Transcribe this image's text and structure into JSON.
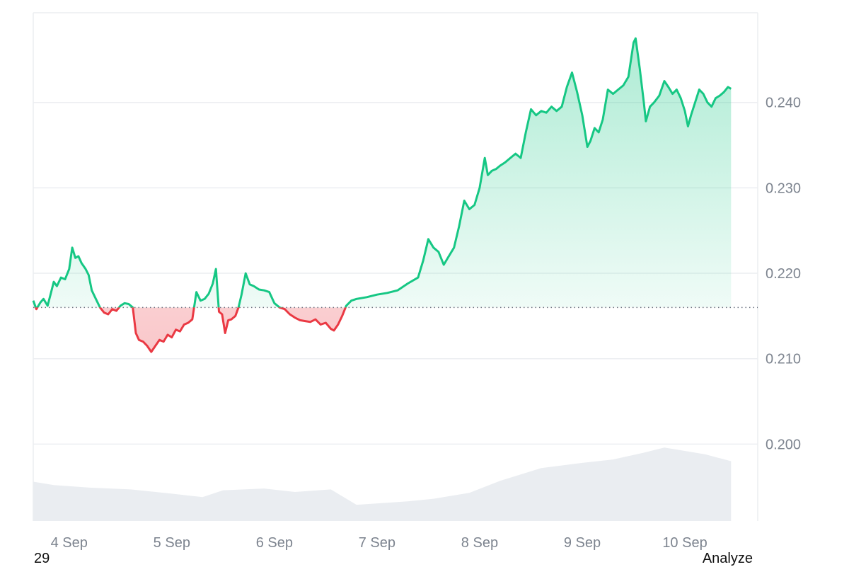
{
  "chart_data": {
    "type": "line",
    "baseline": 0.216,
    "ylim": [
      0.191,
      0.2505
    ],
    "xlim": [
      3.65,
      10.71
    ],
    "y_ticks": [
      {
        "value": 0.24,
        "label": "0.240"
      },
      {
        "value": 0.23,
        "label": "0.230"
      },
      {
        "value": 0.22,
        "label": "0.220"
      },
      {
        "value": 0.21,
        "label": "0.210"
      },
      {
        "value": 0.2,
        "label": "0.200"
      }
    ],
    "x_ticks": [
      {
        "value": 4,
        "label": "4 Sep"
      },
      {
        "value": 5,
        "label": "5 Sep"
      },
      {
        "value": 6,
        "label": "6 Sep"
      },
      {
        "value": 7,
        "label": "7 Sep"
      },
      {
        "value": 8,
        "label": "8 Sep"
      },
      {
        "value": 9,
        "label": "9 Sep"
      },
      {
        "value": 10,
        "label": "10 Sep"
      }
    ],
    "series": [
      {
        "values": [
          [
            3.65,
            0.2168
          ],
          [
            3.68,
            0.2158
          ],
          [
            3.72,
            0.2166
          ],
          [
            3.75,
            0.217
          ],
          [
            3.79,
            0.2162
          ],
          [
            3.82,
            0.2176
          ],
          [
            3.85,
            0.219
          ],
          [
            3.88,
            0.2185
          ],
          [
            3.92,
            0.2195
          ],
          [
            3.96,
            0.2193
          ],
          [
            4.0,
            0.2205
          ],
          [
            4.03,
            0.223
          ],
          [
            4.06,
            0.2218
          ],
          [
            4.09,
            0.222
          ],
          [
            4.12,
            0.2212
          ],
          [
            4.16,
            0.2205
          ],
          [
            4.19,
            0.2198
          ],
          [
            4.22,
            0.218
          ],
          [
            4.26,
            0.217
          ],
          [
            4.3,
            0.216
          ],
          [
            4.34,
            0.2154
          ],
          [
            4.38,
            0.2152
          ],
          [
            4.42,
            0.2158
          ],
          [
            4.46,
            0.2156
          ],
          [
            4.5,
            0.2162
          ],
          [
            4.54,
            0.2165
          ],
          [
            4.58,
            0.2164
          ],
          [
            4.62,
            0.216
          ],
          [
            4.65,
            0.213
          ],
          [
            4.68,
            0.2122
          ],
          [
            4.72,
            0.212
          ],
          [
            4.76,
            0.2115
          ],
          [
            4.8,
            0.2108
          ],
          [
            4.84,
            0.2115
          ],
          [
            4.88,
            0.2122
          ],
          [
            4.92,
            0.212
          ],
          [
            4.96,
            0.2128
          ],
          [
            5.0,
            0.2125
          ],
          [
            5.04,
            0.2134
          ],
          [
            5.08,
            0.2132
          ],
          [
            5.12,
            0.214
          ],
          [
            5.16,
            0.2142
          ],
          [
            5.2,
            0.2146
          ],
          [
            5.24,
            0.2178
          ],
          [
            5.28,
            0.2168
          ],
          [
            5.32,
            0.217
          ],
          [
            5.36,
            0.2176
          ],
          [
            5.4,
            0.2188
          ],
          [
            5.43,
            0.2205
          ],
          [
            5.46,
            0.2155
          ],
          [
            5.49,
            0.2152
          ],
          [
            5.52,
            0.213
          ],
          [
            5.55,
            0.2145
          ],
          [
            5.58,
            0.2146
          ],
          [
            5.62,
            0.215
          ],
          [
            5.65,
            0.216
          ],
          [
            5.68,
            0.2175
          ],
          [
            5.72,
            0.22
          ],
          [
            5.76,
            0.2187
          ],
          [
            5.8,
            0.2185
          ],
          [
            5.85,
            0.2181
          ],
          [
            5.9,
            0.218
          ],
          [
            5.95,
            0.2178
          ],
          [
            6.0,
            0.2165
          ],
          [
            6.05,
            0.216
          ],
          [
            6.1,
            0.2158
          ],
          [
            6.15,
            0.2152
          ],
          [
            6.2,
            0.2148
          ],
          [
            6.25,
            0.2145
          ],
          [
            6.3,
            0.2144
          ],
          [
            6.35,
            0.2143
          ],
          [
            6.4,
            0.2146
          ],
          [
            6.45,
            0.214
          ],
          [
            6.5,
            0.2142
          ],
          [
            6.55,
            0.2135
          ],
          [
            6.58,
            0.2133
          ],
          [
            6.62,
            0.214
          ],
          [
            6.66,
            0.215
          ],
          [
            6.7,
            0.2162
          ],
          [
            6.75,
            0.2168
          ],
          [
            6.8,
            0.217
          ],
          [
            6.9,
            0.2172
          ],
          [
            7.0,
            0.2175
          ],
          [
            7.1,
            0.2177
          ],
          [
            7.2,
            0.218
          ],
          [
            7.3,
            0.2188
          ],
          [
            7.4,
            0.2195
          ],
          [
            7.45,
            0.2215
          ],
          [
            7.5,
            0.224
          ],
          [
            7.55,
            0.223
          ],
          [
            7.6,
            0.2225
          ],
          [
            7.65,
            0.221
          ],
          [
            7.7,
            0.222
          ],
          [
            7.75,
            0.223
          ],
          [
            7.8,
            0.2255
          ],
          [
            7.85,
            0.2285
          ],
          [
            7.9,
            0.2275
          ],
          [
            7.95,
            0.228
          ],
          [
            8.0,
            0.23
          ],
          [
            8.05,
            0.2335
          ],
          [
            8.08,
            0.2315
          ],
          [
            8.12,
            0.232
          ],
          [
            8.16,
            0.2322
          ],
          [
            8.2,
            0.2326
          ],
          [
            8.25,
            0.233
          ],
          [
            8.3,
            0.2335
          ],
          [
            8.35,
            0.234
          ],
          [
            8.4,
            0.2335
          ],
          [
            8.45,
            0.2365
          ],
          [
            8.5,
            0.2392
          ],
          [
            8.55,
            0.2385
          ],
          [
            8.6,
            0.239
          ],
          [
            8.65,
            0.2388
          ],
          [
            8.7,
            0.2395
          ],
          [
            8.75,
            0.239
          ],
          [
            8.8,
            0.2395
          ],
          [
            8.85,
            0.2418
          ],
          [
            8.9,
            0.2435
          ],
          [
            8.95,
            0.2412
          ],
          [
            9.0,
            0.2385
          ],
          [
            9.05,
            0.2348
          ],
          [
            9.08,
            0.2355
          ],
          [
            9.12,
            0.237
          ],
          [
            9.16,
            0.2365
          ],
          [
            9.2,
            0.238
          ],
          [
            9.25,
            0.2415
          ],
          [
            9.3,
            0.241
          ],
          [
            9.35,
            0.2415
          ],
          [
            9.4,
            0.242
          ],
          [
            9.45,
            0.243
          ],
          [
            9.5,
            0.247
          ],
          [
            9.52,
            0.2475
          ],
          [
            9.56,
            0.244
          ],
          [
            9.6,
            0.24
          ],
          [
            9.62,
            0.2378
          ],
          [
            9.66,
            0.2395
          ],
          [
            9.7,
            0.24
          ],
          [
            9.75,
            0.2408
          ],
          [
            9.8,
            0.2425
          ],
          [
            9.84,
            0.2418
          ],
          [
            9.88,
            0.241
          ],
          [
            9.92,
            0.2415
          ],
          [
            9.96,
            0.2405
          ],
          [
            10.0,
            0.239
          ],
          [
            10.03,
            0.2372
          ],
          [
            10.06,
            0.2385
          ],
          [
            10.1,
            0.24
          ],
          [
            10.14,
            0.2415
          ],
          [
            10.18,
            0.241
          ],
          [
            10.22,
            0.24
          ],
          [
            10.26,
            0.2395
          ],
          [
            10.3,
            0.2405
          ],
          [
            10.34,
            0.2408
          ],
          [
            10.38,
            0.2412
          ],
          [
            10.42,
            0.2418
          ],
          [
            10.45,
            0.2416
          ]
        ]
      }
    ],
    "volume": {
      "values": [
        [
          3.65,
          0.1956
        ],
        [
          3.85,
          0.1952
        ],
        [
          4.2,
          0.1949
        ],
        [
          4.6,
          0.1947
        ],
        [
          5.0,
          0.1942
        ],
        [
          5.3,
          0.1938
        ],
        [
          5.5,
          0.1946
        ],
        [
          5.9,
          0.1948
        ],
        [
          6.2,
          0.1944
        ],
        [
          6.55,
          0.1947
        ],
        [
          6.8,
          0.1929
        ],
        [
          7.3,
          0.1933
        ],
        [
          7.55,
          0.1936
        ],
        [
          7.9,
          0.1943
        ],
        [
          8.2,
          0.1957
        ],
        [
          8.6,
          0.1972
        ],
        [
          9.0,
          0.1978
        ],
        [
          9.3,
          0.1982
        ],
        [
          9.6,
          0.199
        ],
        [
          9.8,
          0.1996
        ],
        [
          10.2,
          0.1988
        ],
        [
          10.45,
          0.198
        ]
      ]
    },
    "colors": {
      "up_line": "#16c784",
      "down_line": "#ea3943",
      "up_fill": "#16c784",
      "down_fill": "#ea3943",
      "volume_fill": "#eaedf1",
      "grid": "#eceef1",
      "baseline": "#6b7280"
    },
    "grid": true
  },
  "footer": {
    "left_text": "29",
    "right_text": "Analyze"
  }
}
